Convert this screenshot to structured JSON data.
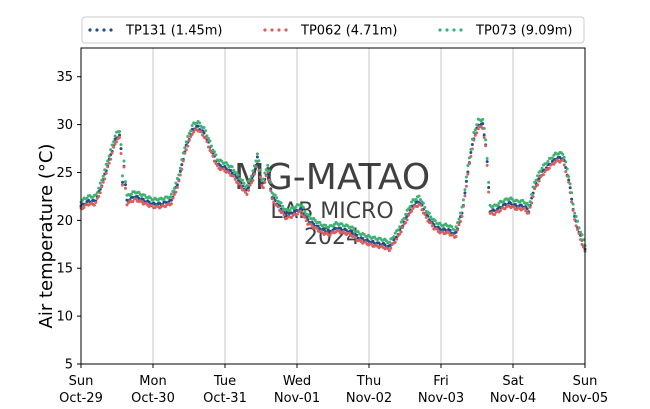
{
  "chart_data": {
    "type": "scatter",
    "ylabel": "Air temperature (°C)",
    "ylim": [
      5,
      38
    ],
    "yticks": [
      5,
      10,
      15,
      20,
      25,
      30,
      35
    ],
    "xlim": [
      0,
      7
    ],
    "x_unit": "days from Sun Oct-29 00:00",
    "xticks": [
      {
        "x": 0,
        "day": "Sun",
        "date": "Oct-29"
      },
      {
        "x": 1,
        "day": "Mon",
        "date": "Oct-30"
      },
      {
        "x": 2,
        "day": "Tue",
        "date": "Oct-31"
      },
      {
        "x": 3,
        "day": "Wed",
        "date": "Nov-01"
      },
      {
        "x": 4,
        "day": "Thu",
        "date": "Nov-02"
      },
      {
        "x": 5,
        "day": "Fri",
        "date": "Nov-03"
      },
      {
        "x": 6,
        "day": "Sat",
        "date": "Nov-04"
      },
      {
        "x": 7,
        "day": "Sun",
        "date": "Nov-05"
      }
    ],
    "grid": "vertical",
    "legend_position": "top",
    "watermark": [
      "MG-MATAO",
      "LAB MICRO",
      "2024"
    ],
    "base_curve": [
      [
        0.0,
        21.5
      ],
      [
        0.1,
        22.0
      ],
      [
        0.2,
        22.0
      ],
      [
        0.28,
        23.5
      ],
      [
        0.4,
        26.5
      ],
      [
        0.48,
        28.5
      ],
      [
        0.55,
        29.0
      ],
      [
        0.57,
        23.5
      ],
      [
        0.6,
        26.0
      ],
      [
        0.63,
        22.0
      ],
      [
        0.75,
        22.5
      ],
      [
        0.9,
        22.0
      ],
      [
        1.0,
        21.7
      ],
      [
        1.1,
        21.7
      ],
      [
        1.25,
        22.0
      ],
      [
        1.35,
        24.0
      ],
      [
        1.45,
        27.5
      ],
      [
        1.55,
        29.5
      ],
      [
        1.62,
        29.8
      ],
      [
        1.72,
        29.0
      ],
      [
        1.8,
        27.5
      ],
      [
        1.9,
        25.8
      ],
      [
        2.0,
        25.5
      ],
      [
        2.1,
        25.0
      ],
      [
        2.2,
        24.0
      ],
      [
        2.3,
        23.0
      ],
      [
        2.4,
        24.8
      ],
      [
        2.45,
        26.5
      ],
      [
        2.52,
        23.5
      ],
      [
        2.6,
        25.5
      ],
      [
        2.65,
        22.5
      ],
      [
        2.75,
        21.5
      ],
      [
        2.85,
        20.5
      ],
      [
        2.95,
        20.8
      ],
      [
        3.05,
        21.2
      ],
      [
        3.15,
        20.0
      ],
      [
        3.25,
        19.5
      ],
      [
        3.35,
        19.0
      ],
      [
        3.45,
        18.8
      ],
      [
        3.55,
        19.2
      ],
      [
        3.65,
        19.0
      ],
      [
        3.75,
        18.8
      ],
      [
        3.85,
        18.2
      ],
      [
        4.0,
        17.8
      ],
      [
        4.1,
        17.6
      ],
      [
        4.2,
        17.5
      ],
      [
        4.28,
        17.2
      ],
      [
        4.4,
        18.5
      ],
      [
        4.5,
        20.0
      ],
      [
        4.6,
        21.5
      ],
      [
        4.7,
        22.0
      ],
      [
        4.8,
        20.5
      ],
      [
        4.9,
        19.5
      ],
      [
        5.0,
        19.0
      ],
      [
        5.1,
        19.0
      ],
      [
        5.2,
        18.5
      ],
      [
        5.3,
        21.0
      ],
      [
        5.38,
        25.5
      ],
      [
        5.45,
        28.5
      ],
      [
        5.52,
        30.0
      ],
      [
        5.58,
        30.0
      ],
      [
        5.63,
        27.5
      ],
      [
        5.68,
        21.0
      ],
      [
        5.75,
        21.0
      ],
      [
        5.85,
        21.5
      ],
      [
        5.95,
        21.8
      ],
      [
        6.05,
        21.5
      ],
      [
        6.15,
        21.5
      ],
      [
        6.22,
        21.0
      ],
      [
        6.3,
        23.5
      ],
      [
        6.4,
        25.0
      ],
      [
        6.5,
        25.8
      ],
      [
        6.6,
        26.5
      ],
      [
        6.7,
        26.5
      ],
      [
        6.78,
        24.0
      ],
      [
        6.85,
        20.5
      ],
      [
        6.93,
        18.5
      ],
      [
        7.0,
        17.0
      ]
    ],
    "series": [
      {
        "name": "TP131 (1.45m)",
        "color": "#1f4e8c",
        "offset": 0.0
      },
      {
        "name": "TP062 (4.71m)",
        "color": "#d95f5f",
        "offset": -0.3
      },
      {
        "name": "TP073 (9.09m)",
        "color": "#3cb371",
        "offset": 0.5
      }
    ]
  }
}
